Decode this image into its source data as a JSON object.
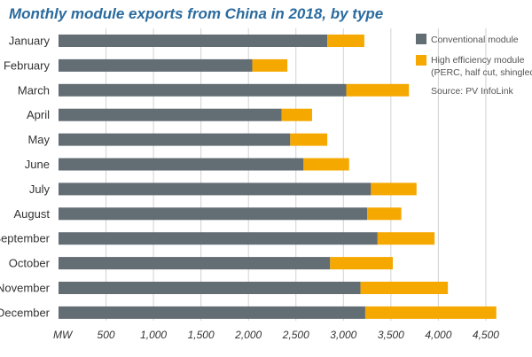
{
  "chart_data": {
    "type": "bar",
    "orientation": "horizontal",
    "stacked": true,
    "title": "Monthly module exports from China in 2018, by type",
    "xlabel": "MW",
    "categories": [
      "January",
      "February",
      "March",
      "April",
      "May",
      "June",
      "July",
      "August",
      "September",
      "October",
      "November",
      "December"
    ],
    "series": [
      {
        "name": "Conventional module",
        "color": "#636d74",
        "values": [
          2830,
          2040,
          3030,
          2350,
          2440,
          2580,
          3290,
          3250,
          3360,
          2860,
          3180,
          3230
        ]
      },
      {
        "name": "High efficiency module",
        "note": "(PERC, half cut, shingled etc)",
        "color": "#f5a800",
        "values": [
          390,
          370,
          660,
          320,
          390,
          480,
          480,
          360,
          600,
          660,
          920,
          1380
        ]
      }
    ],
    "xticks": [
      "500",
      "1,000",
      "1,500",
      "2,000",
      "2,500",
      "3,000",
      "3,500",
      "4,000",
      "4,500"
    ],
    "xtick_values": [
      500,
      1000,
      1500,
      2000,
      2500,
      3000,
      3500,
      4000,
      4500
    ],
    "xlim": [
      0,
      4700
    ],
    "grid": "vertical",
    "legend_position": "right",
    "source": "Source: PV InfoLink"
  }
}
